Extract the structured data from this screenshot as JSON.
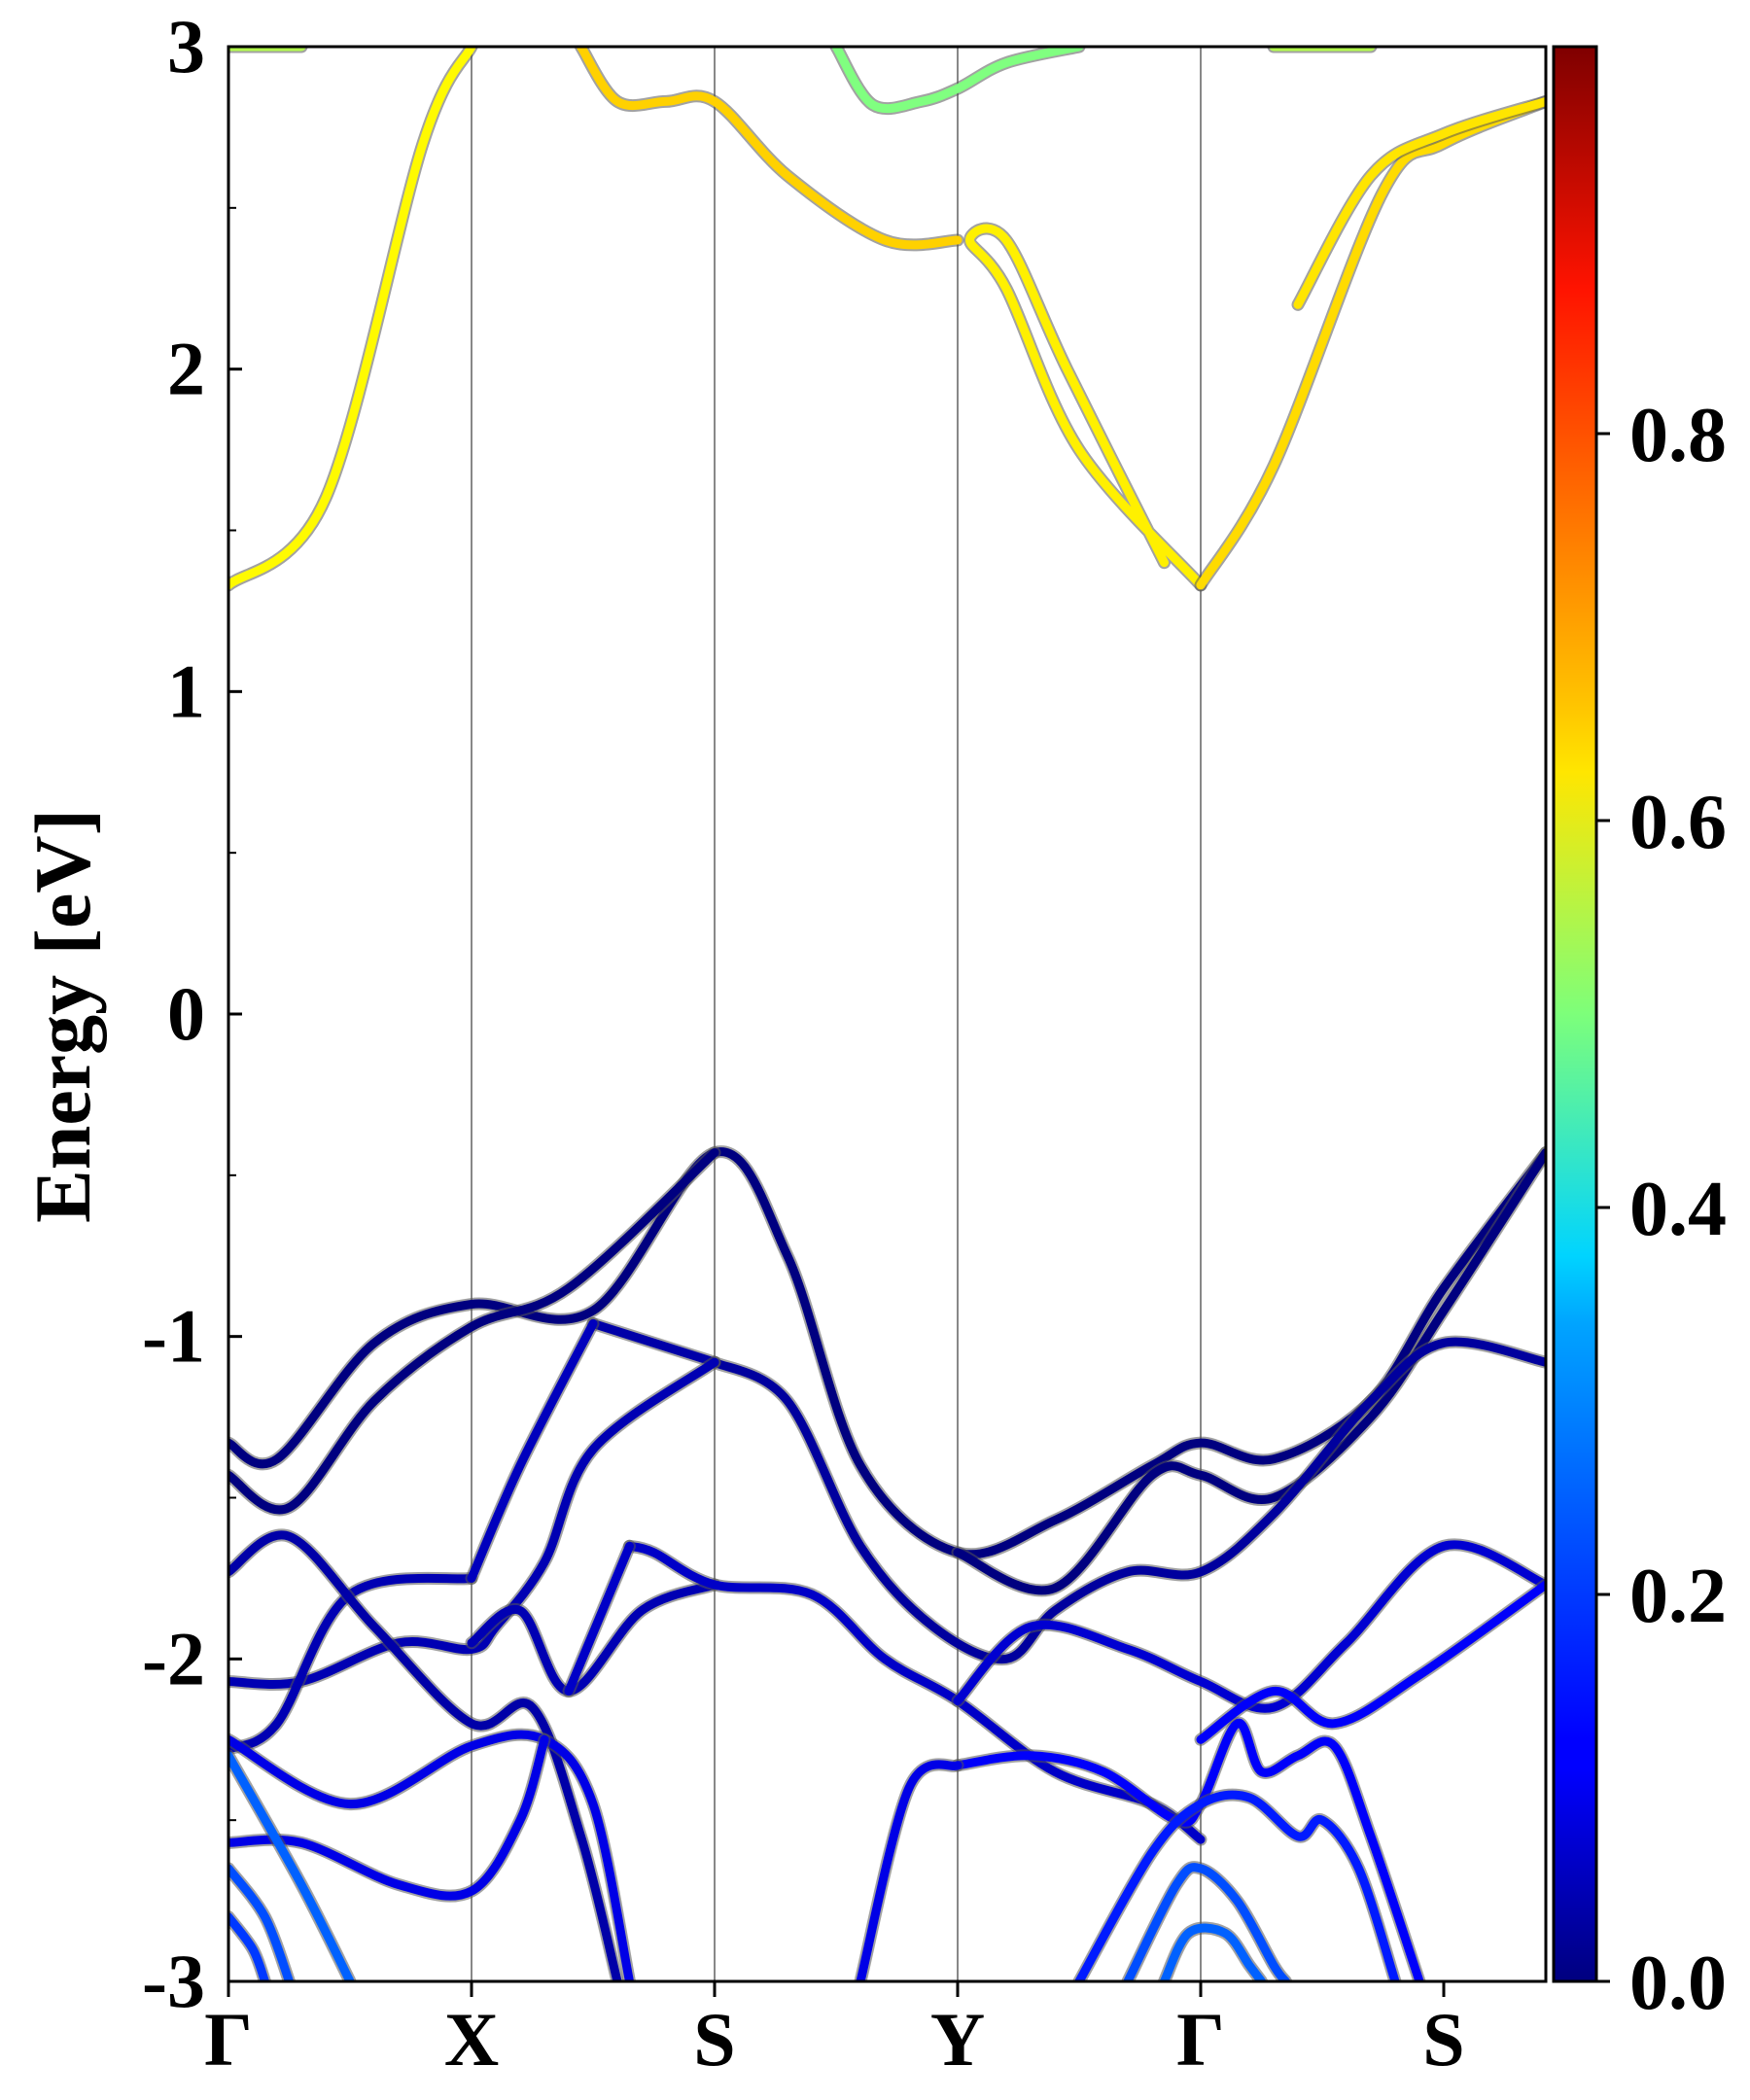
{
  "chart_data": {
    "type": "line",
    "title": "",
    "ylabel": "Energy [eV]",
    "xlabel": "",
    "x_ticks": [
      "Γ",
      "X",
      "S",
      "Y",
      "Γ",
      "S"
    ],
    "x_tick_positions": [
      0,
      1,
      2,
      3,
      4,
      5
    ],
    "xlim": [
      0,
      5.42
    ],
    "ylim": [
      -3,
      3
    ],
    "y_ticks": [
      "-3",
      "-2",
      "-1",
      "0",
      "1",
      "2",
      "3"
    ],
    "y_tick_values": [
      -3,
      -2,
      -1,
      0,
      1,
      2,
      3
    ],
    "grid": "vertical lines at high-symmetry points",
    "legend": "none",
    "colorbar": {
      "colormap": "jet",
      "range": [
        0,
        1
      ],
      "tick_values": [
        0.0,
        0.2,
        0.4,
        0.6,
        0.8
      ],
      "tick_labels": [
        "0.0",
        "0.2",
        "0.4",
        "0.6",
        "0.8"
      ],
      "placement": "right"
    },
    "series": [
      {
        "weight": 0.63,
        "points": [
          [
            0,
            1.33
          ],
          [
            0.4,
            1.6
          ],
          [
            0.8,
            2.7
          ],
          [
            1.0,
            3.0
          ]
        ]
      },
      {
        "weight": 0.64,
        "points": [
          [
            4.0,
            1.33
          ],
          [
            3.5,
            1.75
          ],
          [
            3.2,
            2.25
          ],
          [
            3.05,
            2.4
          ],
          [
            3.2,
            2.4
          ],
          [
            3.45,
            2.0
          ],
          [
            3.85,
            1.4
          ]
        ]
      },
      {
        "weight": 0.66,
        "points": [
          [
            4.0,
            1.33
          ],
          [
            4.3,
            1.7
          ],
          [
            4.75,
            2.55
          ],
          [
            5.0,
            2.7
          ],
          [
            5.42,
            2.83
          ]
        ]
      },
      {
        "weight": 0.65,
        "points": [
          [
            4.4,
            2.2
          ],
          [
            4.7,
            2.6
          ],
          [
            5.0,
            2.73
          ],
          [
            5.42,
            2.83
          ]
        ]
      },
      {
        "weight": 0.67,
        "points": [
          [
            3.0,
            2.4
          ],
          [
            2.7,
            2.4
          ],
          [
            2.3,
            2.6
          ],
          [
            2.0,
            2.83
          ],
          [
            1.8,
            2.83
          ],
          [
            1.6,
            2.83
          ],
          [
            1.45,
            3.0
          ]
        ]
      },
      {
        "weight": 0.5,
        "points": [
          [
            2.5,
            3.0
          ],
          [
            2.65,
            2.82
          ],
          [
            2.85,
            2.83
          ],
          [
            3.0,
            2.87
          ],
          [
            3.2,
            2.95
          ],
          [
            3.5,
            3.0
          ]
        ]
      },
      {
        "weight": 0.55,
        "points": [
          [
            0,
            3.0
          ],
          [
            0.3,
            3.0
          ]
        ]
      },
      {
        "weight": 0.55,
        "points": [
          [
            4.3,
            3.0
          ],
          [
            4.7,
            3.0
          ]
        ]
      },
      {
        "weight": 0.0,
        "points": [
          [
            0,
            -1.33
          ],
          [
            0.2,
            -1.38
          ],
          [
            0.6,
            -1.02
          ],
          [
            1.0,
            -0.9
          ],
          [
            1.5,
            -0.92
          ],
          [
            2.0,
            -0.43
          ],
          [
            2.3,
            -0.75
          ],
          [
            2.6,
            -1.4
          ],
          [
            3.0,
            -1.67
          ],
          [
            3.4,
            -1.57
          ],
          [
            3.8,
            -1.4
          ],
          [
            4.0,
            -1.33
          ],
          [
            4.3,
            -1.38
          ],
          [
            4.7,
            -1.2
          ],
          [
            5.0,
            -0.85
          ],
          [
            5.42,
            -0.43
          ]
        ]
      },
      {
        "weight": 0.0,
        "points": [
          [
            0,
            -1.43
          ],
          [
            0.25,
            -1.53
          ],
          [
            0.6,
            -1.2
          ],
          [
            1.0,
            -0.97
          ],
          [
            1.4,
            -0.85
          ],
          [
            2.0,
            -0.43
          ]
        ]
      },
      {
        "weight": 0.0,
        "points": [
          [
            3.0,
            -1.67
          ],
          [
            3.4,
            -1.78
          ],
          [
            3.8,
            -1.43
          ],
          [
            4.0,
            -1.43
          ],
          [
            4.3,
            -1.5
          ],
          [
            4.7,
            -1.25
          ],
          [
            5.0,
            -0.92
          ],
          [
            5.42,
            -0.43
          ]
        ]
      },
      {
        "weight": 0.03,
        "points": [
          [
            2.0,
            -1.08
          ],
          [
            2.3,
            -1.2
          ],
          [
            2.6,
            -1.65
          ],
          [
            2.9,
            -1.9
          ],
          [
            3.2,
            -2.0
          ],
          [
            3.4,
            -1.85
          ],
          [
            3.7,
            -1.73
          ],
          [
            4.0,
            -1.73
          ],
          [
            4.3,
            -1.55
          ],
          [
            4.7,
            -1.2
          ],
          [
            5.0,
            -1.02
          ],
          [
            5.42,
            -1.08
          ]
        ]
      },
      {
        "weight": 0.04,
        "points": [
          [
            1.5,
            -0.96
          ],
          [
            2.0,
            -1.08
          ]
        ]
      },
      {
        "weight": 0.05,
        "points": [
          [
            2.0,
            -1.08
          ],
          [
            1.5,
            -1.35
          ],
          [
            1.3,
            -1.7
          ],
          [
            1.1,
            -1.9
          ],
          [
            1.0,
            -1.97
          ],
          [
            0.7,
            -1.95
          ],
          [
            0.3,
            -2.07
          ],
          [
            0,
            -2.07
          ]
        ]
      },
      {
        "weight": 0.05,
        "points": [
          [
            1.0,
            -1.75
          ],
          [
            0.5,
            -1.8
          ],
          [
            0.2,
            -2.2
          ],
          [
            0,
            -2.28
          ]
        ]
      },
      {
        "weight": 0.06,
        "points": [
          [
            1.0,
            -1.75
          ],
          [
            1.2,
            -1.4
          ],
          [
            1.5,
            -0.96
          ]
        ]
      },
      {
        "weight": 0.04,
        "points": [
          [
            0,
            -1.73
          ],
          [
            0.25,
            -1.62
          ],
          [
            0.6,
            -1.9
          ],
          [
            1.0,
            -2.2
          ],
          [
            1.25,
            -2.15
          ],
          [
            1.45,
            -2.55
          ],
          [
            1.6,
            -3.0
          ]
        ]
      },
      {
        "weight": 0.05,
        "points": [
          [
            1.0,
            -1.95
          ],
          [
            1.2,
            -1.85
          ],
          [
            1.4,
            -2.1
          ],
          [
            1.7,
            -1.85
          ],
          [
            2.0,
            -1.77
          ]
        ]
      },
      {
        "weight": 0.07,
        "points": [
          [
            1.65,
            -1.65
          ],
          [
            1.75,
            -1.67
          ],
          [
            2.0,
            -1.77
          ],
          [
            2.4,
            -1.8
          ],
          [
            2.7,
            -2.0
          ],
          [
            3.0,
            -2.13
          ],
          [
            3.4,
            -2.35
          ],
          [
            3.8,
            -2.45
          ],
          [
            4.0,
            -2.56
          ]
        ]
      },
      {
        "weight": 0.07,
        "points": [
          [
            1.4,
            -2.1
          ],
          [
            1.65,
            -1.65
          ]
        ]
      },
      {
        "weight": 0.08,
        "points": [
          [
            3.0,
            -2.13
          ],
          [
            3.3,
            -1.9
          ],
          [
            3.7,
            -1.97
          ],
          [
            4.0,
            -2.07
          ],
          [
            4.3,
            -2.15
          ],
          [
            4.6,
            -1.95
          ],
          [
            5.0,
            -1.65
          ],
          [
            5.42,
            -1.77
          ]
        ]
      },
      {
        "weight": 0.1,
        "points": [
          [
            0,
            -2.25
          ],
          [
            0.5,
            -2.45
          ],
          [
            1.0,
            -2.27
          ],
          [
            1.3,
            -2.25
          ],
          [
            1.5,
            -2.45
          ],
          [
            1.65,
            -3.0
          ]
        ]
      },
      {
        "weight": 0.1,
        "points": [
          [
            0,
            -2.57
          ],
          [
            0.3,
            -2.57
          ],
          [
            0.7,
            -2.7
          ],
          [
            1.0,
            -2.72
          ],
          [
            1.2,
            -2.5
          ],
          [
            1.3,
            -2.25
          ]
        ]
      },
      {
        "weight": 0.12,
        "points": [
          [
            3.0,
            -2.33
          ],
          [
            3.3,
            -2.3
          ],
          [
            3.6,
            -2.35
          ],
          [
            3.9,
            -2.5
          ],
          [
            4.0,
            -2.45
          ],
          [
            4.15,
            -2.2
          ],
          [
            4.25,
            -2.35
          ],
          [
            4.4,
            -2.3
          ],
          [
            4.55,
            -2.27
          ],
          [
            4.7,
            -2.55
          ],
          [
            4.9,
            -3.0
          ]
        ]
      },
      {
        "weight": 0.12,
        "points": [
          [
            4.0,
            -2.25
          ],
          [
            4.3,
            -2.1
          ],
          [
            4.55,
            -2.2
          ],
          [
            4.9,
            -2.05
          ],
          [
            5.42,
            -1.77
          ]
        ]
      },
      {
        "weight": 0.1,
        "points": [
          [
            2.6,
            -3.0
          ],
          [
            2.8,
            -2.4
          ],
          [
            3.0,
            -2.33
          ]
        ]
      },
      {
        "weight": 0.15,
        "points": [
          [
            3.5,
            -3.0
          ],
          [
            3.8,
            -2.6
          ],
          [
            4.0,
            -2.45
          ],
          [
            4.2,
            -2.43
          ],
          [
            4.4,
            -2.55
          ],
          [
            4.5,
            -2.5
          ],
          [
            4.65,
            -2.65
          ],
          [
            4.8,
            -3.0
          ]
        ]
      },
      {
        "weight": 0.2,
        "points": [
          [
            3.7,
            -3.0
          ],
          [
            3.9,
            -2.7
          ],
          [
            4.0,
            -2.65
          ],
          [
            4.15,
            -2.75
          ],
          [
            4.3,
            -2.95
          ],
          [
            4.35,
            -3.0
          ]
        ]
      },
      {
        "weight": 0.22,
        "points": [
          [
            3.85,
            -3.0
          ],
          [
            3.95,
            -2.85
          ],
          [
            4.1,
            -2.85
          ],
          [
            4.2,
            -2.95
          ],
          [
            4.25,
            -3.0
          ]
        ]
      },
      {
        "weight": 0.2,
        "points": [
          [
            0,
            -2.65
          ],
          [
            0.15,
            -2.8
          ],
          [
            0.25,
            -3.0
          ]
        ]
      },
      {
        "weight": 0.22,
        "points": [
          [
            0,
            -2.3
          ],
          [
            0.3,
            -2.7
          ],
          [
            0.5,
            -3.0
          ]
        ]
      },
      {
        "weight": 0.18,
        "points": [
          [
            0,
            -2.8
          ],
          [
            0.1,
            -2.9
          ],
          [
            0.15,
            -3.0
          ]
        ]
      }
    ]
  }
}
